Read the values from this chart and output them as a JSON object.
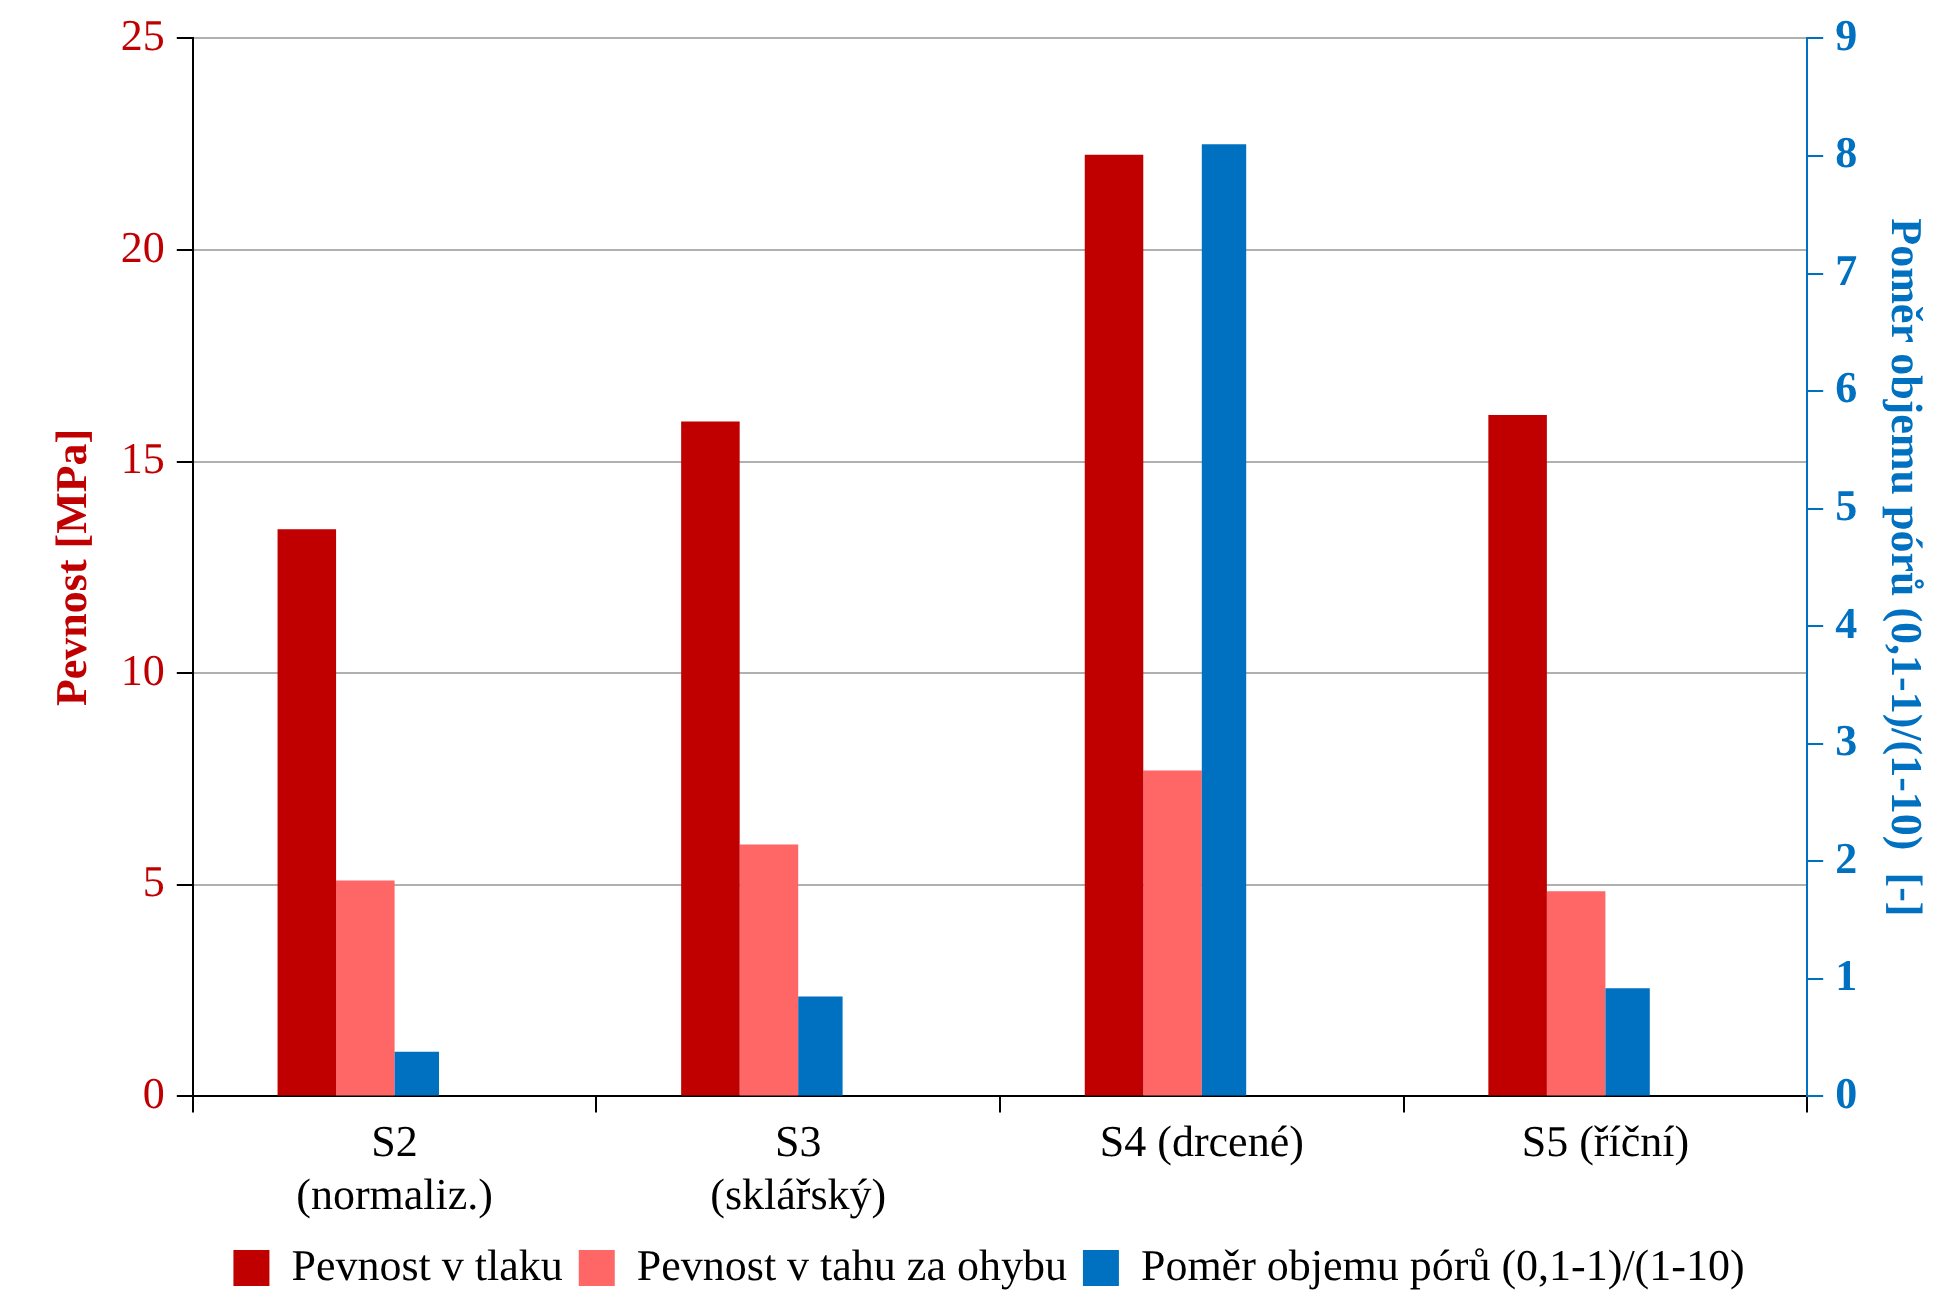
{
  "chart_data": {
    "type": "bar",
    "categories": [
      "S2\n(normaliz.)",
      "S3\n(sklářský)",
      "S4 (drcené)",
      "S5 (říční)"
    ],
    "series": [
      {
        "name": "Pevnost v tlaku",
        "color": "#c00000",
        "values": [
          13.4,
          15.95,
          22.25,
          16.1
        ]
      },
      {
        "name": "Pevnost v tahu za ohybu",
        "color": "#ff6666",
        "values": [
          5.1,
          5.95,
          7.7,
          4.85
        ]
      },
      {
        "name": "Poměr objemu pórů (0,1-1)/(1-10)",
        "color": "#0070c0",
        "axis": "y2",
        "values": [
          0.38,
          0.85,
          8.1,
          0.92
        ]
      }
    ],
    "ylabel": "Pevnost [MPa]",
    "y2label": "Poměr objemu pórů (0,1-1)/(1-10)  [-]",
    "ylim": [
      0,
      25
    ],
    "yticks": [
      0,
      5,
      10,
      15,
      20,
      25
    ],
    "y2lim": [
      0,
      9
    ],
    "y2ticks": [
      0,
      1,
      2,
      3,
      4,
      5,
      6,
      7,
      8,
      9
    ],
    "grid": "y",
    "legend": "bottom"
  }
}
